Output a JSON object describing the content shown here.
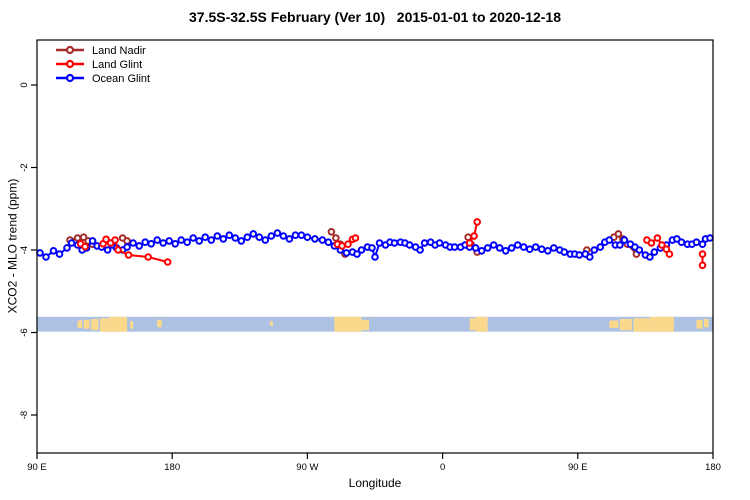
{
  "chart_data": {
    "type": "scatter",
    "title": "37.5S-32.5S February (Ver 10)   2015-01-01 to 2020-12-18",
    "xlabel": "Longitude",
    "ylabel": "XCO2 - MLO trend (ppm)",
    "grid": false,
    "x_axis": {
      "start_deg": 90,
      "end_deg": 540,
      "ticks": [
        {
          "deg": 90,
          "label": "90 E"
        },
        {
          "deg": 180,
          "label": "180"
        },
        {
          "deg": 270,
          "label": "90 W"
        },
        {
          "deg": 360,
          "label": "0"
        },
        {
          "deg": 450,
          "label": "90 E"
        },
        {
          "deg": 540,
          "label": "180"
        }
      ]
    },
    "y_axis": {
      "range": [
        -9.0,
        1.1
      ],
      "ticks": [
        {
          "value": 0,
          "label": "0"
        },
        {
          "value": -2,
          "label": "-2"
        },
        {
          "value": -4,
          "label": "-4"
        },
        {
          "value": -6,
          "label": "-6"
        },
        {
          "value": -8,
          "label": "-8"
        }
      ]
    },
    "legend": {
      "position": "top-left",
      "items": [
        "Land Nadir",
        "Land Glint",
        "Ocean Glint"
      ]
    },
    "map_band": {
      "value_top": -5.62,
      "value_bottom": -5.98,
      "ocean_color": "#adc2e2",
      "land_color": "#fbd98c",
      "land_patches": [
        {
          "d0": 117,
          "d1": 120,
          "top": 0.25,
          "bot": 0.75
        },
        {
          "d0": 121,
          "d1": 125,
          "top": 0.2,
          "bot": 0.8
        },
        {
          "d0": 126,
          "d1": 131,
          "top": 0.15,
          "bot": 0.9
        },
        {
          "d0": 132,
          "d1": 138,
          "top": 0.1,
          "bot": 1.0
        },
        {
          "d0": 138,
          "d1": 150,
          "top": 0.0,
          "bot": 1.0
        },
        {
          "d0": 152,
          "d1": 154,
          "top": 0.3,
          "bot": 0.8
        },
        {
          "d0": 170,
          "d1": 173,
          "top": 0.2,
          "bot": 0.7
        },
        {
          "d0": 245,
          "d1": 247,
          "top": 0.3,
          "bot": 0.6
        },
        {
          "d0": 288,
          "d1": 306,
          "top": 0.0,
          "bot": 1.0
        },
        {
          "d0": 306,
          "d1": 311,
          "top": 0.2,
          "bot": 0.9
        },
        {
          "d0": 378,
          "d1": 382,
          "top": 0.1,
          "bot": 0.9
        },
        {
          "d0": 382,
          "d1": 390,
          "top": 0.0,
          "bot": 1.0
        },
        {
          "d0": 471,
          "d1": 477,
          "top": 0.25,
          "bot": 0.75
        },
        {
          "d0": 478,
          "d1": 486,
          "top": 0.15,
          "bot": 0.9
        },
        {
          "d0": 487,
          "d1": 498,
          "top": 0.1,
          "bot": 1.0
        },
        {
          "d0": 498,
          "d1": 514,
          "top": 0.0,
          "bot": 1.0
        },
        {
          "d0": 529,
          "d1": 533,
          "top": 0.2,
          "bot": 0.8
        },
        {
          "d0": 534,
          "d1": 537,
          "top": 0.15,
          "bot": 0.7
        }
      ]
    },
    "series": [
      {
        "name": "Land Nadir",
        "color": "#a52a2a",
        "marker": "open-circle",
        "groups": [
          [
            [
              112,
              -3.76
            ],
            [
              117,
              -3.71
            ],
            [
              121,
              -3.69
            ],
            [
              124,
              -3.78
            ],
            [
              127,
              -3.86
            ]
          ],
          [
            [
              147,
              -3.71
            ],
            [
              150,
              -3.78
            ]
          ],
          [
            [
              286,
              -3.56
            ],
            [
              289,
              -3.71
            ],
            [
              292,
              -3.86
            ],
            [
              295,
              -4.1
            ]
          ],
          [
            [
              377,
              -3.69
            ],
            [
              379,
              -3.86
            ],
            [
              383,
              -4.05
            ]
          ],
          [
            [
              456,
              -4.0
            ]
          ],
          [
            [
              474,
              -3.69
            ],
            [
              477,
              -3.61
            ],
            [
              480,
              -3.73
            ],
            [
              483,
              -3.86
            ],
            [
              489,
              -4.1
            ]
          ]
        ]
      },
      {
        "name": "Ocean Glint",
        "color": "#0000ff",
        "marker": "open-circle",
        "groups": [
          [
            [
              92,
              -4.07
            ],
            [
              96,
              -4.17
            ],
            [
              101,
              -4.02
            ],
            [
              105,
              -4.1
            ],
            [
              110,
              -3.95
            ],
            [
              113,
              -3.83
            ],
            [
              117,
              -3.88
            ],
            [
              120,
              -4.0
            ],
            [
              123,
              -3.95
            ],
            [
              127,
              -3.78
            ],
            [
              130,
              -3.9
            ],
            [
              133,
              -3.93
            ],
            [
              137,
              -4.0
            ],
            [
              140,
              -3.88
            ],
            [
              143,
              -3.95
            ],
            [
              147,
              -4.0
            ],
            [
              150,
              -3.93
            ],
            [
              154,
              -3.83
            ],
            [
              158,
              -3.9
            ],
            [
              162,
              -3.81
            ],
            [
              166,
              -3.85
            ],
            [
              170,
              -3.76
            ],
            [
              174,
              -3.83
            ],
            [
              178,
              -3.78
            ],
            [
              182,
              -3.85
            ],
            [
              186,
              -3.76
            ],
            [
              190,
              -3.81
            ],
            [
              194,
              -3.71
            ],
            [
              198,
              -3.78
            ],
            [
              202,
              -3.69
            ],
            [
              206,
              -3.76
            ],
            [
              210,
              -3.66
            ],
            [
              214,
              -3.73
            ],
            [
              218,
              -3.64
            ],
            [
              222,
              -3.71
            ],
            [
              226,
              -3.78
            ],
            [
              230,
              -3.69
            ],
            [
              234,
              -3.61
            ],
            [
              238,
              -3.69
            ],
            [
              242,
              -3.76
            ],
            [
              246,
              -3.66
            ],
            [
              250,
              -3.59
            ],
            [
              254,
              -3.66
            ],
            [
              258,
              -3.73
            ],
            [
              262,
              -3.64
            ],
            [
              266,
              -3.64
            ],
            [
              270,
              -3.69
            ],
            [
              275,
              -3.73
            ],
            [
              280,
              -3.76
            ],
            [
              284,
              -3.81
            ],
            [
              288,
              -3.9
            ],
            [
              292,
              -4.0
            ],
            [
              296,
              -4.07
            ],
            [
              300,
              -4.05
            ],
            [
              303,
              -4.1
            ],
            [
              306,
              -4.0
            ],
            [
              310,
              -3.93
            ],
            [
              313,
              -3.95
            ],
            [
              315,
              -4.17
            ],
            [
              318,
              -3.83
            ],
            [
              322,
              -3.88
            ],
            [
              325,
              -3.81
            ],
            [
              328,
              -3.83
            ],
            [
              332,
              -3.81
            ],
            [
              335,
              -3.83
            ],
            [
              338,
              -3.88
            ],
            [
              342,
              -3.93
            ],
            [
              345,
              -4.0
            ],
            [
              348,
              -3.83
            ],
            [
              352,
              -3.81
            ],
            [
              355,
              -3.88
            ],
            [
              358,
              -3.83
            ],
            [
              362,
              -3.88
            ],
            [
              365,
              -3.93
            ],
            [
              368,
              -3.93
            ],
            [
              372,
              -3.93
            ],
            [
              375,
              -3.88
            ],
            [
              378,
              -3.93
            ],
            [
              382,
              -3.95
            ],
            [
              386,
              -4.02
            ],
            [
              390,
              -3.95
            ],
            [
              394,
              -3.88
            ],
            [
              398,
              -3.95
            ],
            [
              402,
              -4.02
            ],
            [
              406,
              -3.95
            ],
            [
              410,
              -3.88
            ],
            [
              414,
              -3.93
            ],
            [
              418,
              -3.98
            ],
            [
              422,
              -3.93
            ],
            [
              426,
              -3.98
            ],
            [
              430,
              -4.02
            ],
            [
              434,
              -3.95
            ],
            [
              438,
              -4.0
            ],
            [
              441,
              -4.05
            ],
            [
              445,
              -4.1
            ],
            [
              448,
              -4.1
            ],
            [
              451,
              -4.12
            ],
            [
              455,
              -4.1
            ],
            [
              458,
              -4.17
            ],
            [
              461,
              -4.0
            ],
            [
              465,
              -3.93
            ],
            [
              468,
              -3.81
            ],
            [
              471,
              -3.76
            ],
            [
              475,
              -3.88
            ],
            [
              478,
              -3.88
            ],
            [
              481,
              -3.76
            ],
            [
              485,
              -3.86
            ],
            [
              488,
              -3.93
            ],
            [
              491,
              -4.0
            ],
            [
              495,
              -4.12
            ],
            [
              498,
              -4.17
            ],
            [
              501,
              -4.05
            ],
            [
              505,
              -3.95
            ],
            [
              509,
              -3.88
            ],
            [
              513,
              -3.76
            ],
            [
              516,
              -3.73
            ],
            [
              519,
              -3.81
            ],
            [
              523,
              -3.86
            ],
            [
              526,
              -3.86
            ],
            [
              529,
              -3.81
            ],
            [
              533,
              -3.86
            ],
            [
              535,
              -3.73
            ],
            [
              538,
              -3.71
            ]
          ]
        ]
      },
      {
        "name": "Land Glint",
        "color": "#ff0000",
        "marker": "open-circle",
        "groups": [
          [
            [
              119,
              -3.85
            ],
            [
              122,
              -3.92
            ]
          ],
          [
            [
              134,
              -3.85
            ],
            [
              136,
              -3.74
            ],
            [
              139,
              -3.83
            ],
            [
              142,
              -3.76
            ],
            [
              144,
              -4.0
            ],
            [
              151,
              -4.12
            ],
            [
              164,
              -4.17
            ],
            [
              177,
              -4.29
            ]
          ],
          [
            [
              290,
              -3.86
            ],
            [
              293,
              -3.9
            ],
            [
              297,
              -3.86
            ],
            [
              300,
              -3.74
            ],
            [
              302,
              -3.71
            ]
          ],
          [
            [
              378,
              -3.83
            ],
            [
              381,
              -3.66
            ],
            [
              383,
              -3.32
            ]
          ],
          [
            [
              496,
              -3.76
            ],
            [
              499,
              -3.83
            ],
            [
              503,
              -3.71
            ],
            [
              506,
              -3.88
            ],
            [
              509,
              -3.98
            ],
            [
              511,
              -4.1
            ]
          ],
          [
            [
              533,
              -4.1
            ],
            [
              533,
              -4.37
            ]
          ]
        ]
      }
    ]
  }
}
